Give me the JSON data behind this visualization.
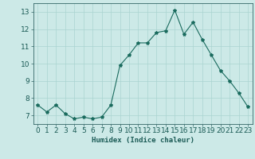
{
  "x": [
    0,
    1,
    2,
    3,
    4,
    5,
    6,
    7,
    8,
    9,
    10,
    11,
    12,
    13,
    14,
    15,
    16,
    17,
    18,
    19,
    20,
    21,
    22,
    23
  ],
  "y": [
    7.6,
    7.2,
    7.6,
    7.1,
    6.8,
    6.9,
    6.8,
    6.9,
    7.6,
    9.9,
    10.5,
    11.2,
    11.2,
    11.8,
    11.9,
    13.1,
    11.7,
    12.4,
    11.4,
    10.5,
    9.6,
    9.0,
    8.3,
    7.5
  ],
  "line_color": "#1a6b5e",
  "marker": "*",
  "marker_size": 3,
  "bg_color": "#cce9e7",
  "grid_color": "#aad4d1",
  "xlabel": "Humidex (Indice chaleur)",
  "ylim": [
    6.5,
    13.5
  ],
  "xlim": [
    -0.5,
    23.5
  ],
  "yticks": [
    7,
    8,
    9,
    10,
    11,
    12,
    13
  ],
  "xticks": [
    0,
    1,
    2,
    3,
    4,
    5,
    6,
    7,
    8,
    9,
    10,
    11,
    12,
    13,
    14,
    15,
    16,
    17,
    18,
    19,
    20,
    21,
    22,
    23
  ],
  "label_fontsize": 6.5,
  "tick_fontsize": 6.5
}
